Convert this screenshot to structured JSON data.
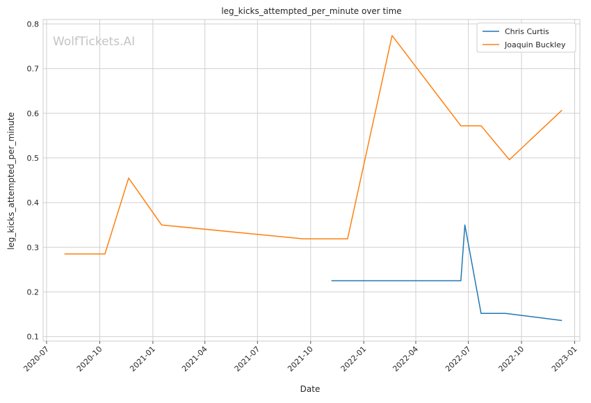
{
  "chart_data": {
    "type": "line",
    "title": "leg_kicks_attempted_per_minute over time",
    "xlabel": "Date",
    "ylabel": "leg_kicks_attempted_per_minute",
    "watermark": "WolfTickets.AI",
    "xlim": [
      "2020-06-25",
      "2023-01-10"
    ],
    "ylim": [
      0.09,
      0.81
    ],
    "x_ticks": [
      "2020-07",
      "2020-10",
      "2021-01",
      "2021-04",
      "2021-07",
      "2021-10",
      "2022-01",
      "2022-04",
      "2022-07",
      "2022-10",
      "2023-01"
    ],
    "y_ticks": [
      "0.1",
      "0.2",
      "0.3",
      "0.4",
      "0.5",
      "0.6",
      "0.7",
      "0.8"
    ],
    "grid": true,
    "legend_position": "top-right",
    "series": [
      {
        "name": "Chris Curtis",
        "color": "#1f77b4",
        "points": [
          {
            "x": "2021-11-06",
            "y": 0.225
          },
          {
            "x": "2022-06-18",
            "y": 0.225
          },
          {
            "x": "2022-06-25",
            "y": 0.35
          },
          {
            "x": "2022-07-23",
            "y": 0.152
          },
          {
            "x": "2022-09-03",
            "y": 0.152
          },
          {
            "x": "2022-12-10",
            "y": 0.136
          }
        ]
      },
      {
        "name": "Joaquin Buckley",
        "color": "#ff7f0e",
        "points": [
          {
            "x": "2020-08-01",
            "y": 0.285
          },
          {
            "x": "2020-10-10",
            "y": 0.285
          },
          {
            "x": "2020-11-20",
            "y": 0.455
          },
          {
            "x": "2021-01-16",
            "y": 0.35
          },
          {
            "x": "2021-09-18",
            "y": 0.319
          },
          {
            "x": "2021-12-04",
            "y": 0.319
          },
          {
            "x": "2022-02-19",
            "y": 0.774
          },
          {
            "x": "2022-06-18",
            "y": 0.572
          },
          {
            "x": "2022-07-23",
            "y": 0.572
          },
          {
            "x": "2022-09-10",
            "y": 0.496
          },
          {
            "x": "2022-12-10",
            "y": 0.607
          }
        ]
      }
    ]
  }
}
